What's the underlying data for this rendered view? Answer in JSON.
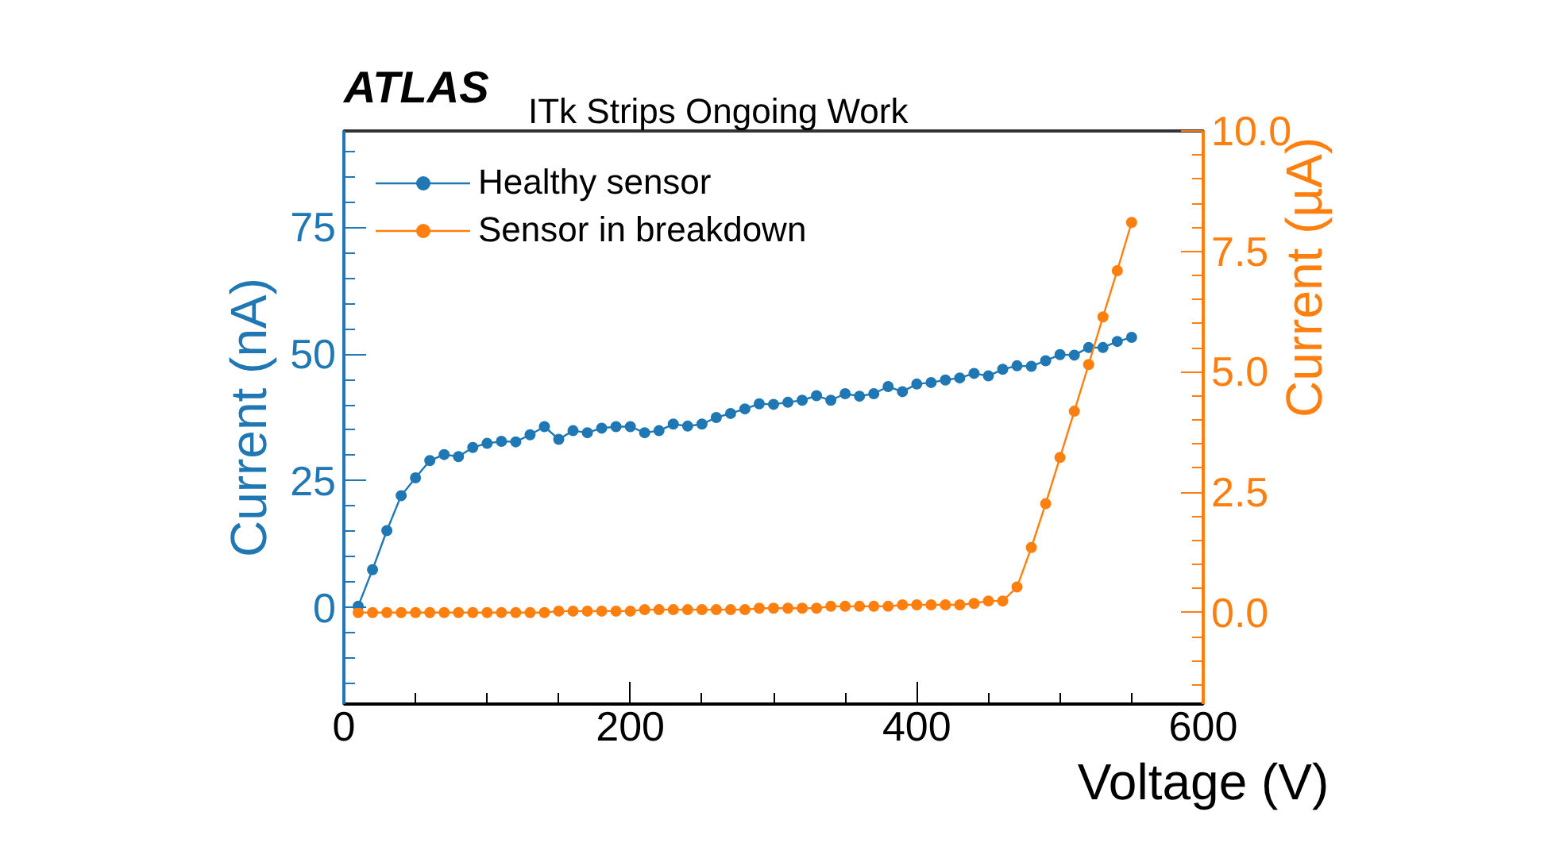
{
  "chart_data": {
    "type": "line",
    "title": "ATLAS",
    "subtitle": "ITk Strips Ongoing Work",
    "xlabel": "Voltage (V)",
    "ylabel": "Current (nA)",
    "y2label": "Current (µA)",
    "x": [
      10,
      20,
      30,
      40,
      50,
      60,
      70,
      80,
      90,
      100,
      110,
      120,
      130,
      140,
      150,
      160,
      170,
      180,
      190,
      200,
      210,
      220,
      230,
      240,
      250,
      260,
      270,
      280,
      290,
      300,
      310,
      320,
      330,
      340,
      350,
      360,
      370,
      380,
      390,
      400,
      410,
      420,
      430,
      440,
      450,
      460,
      470,
      480,
      490,
      500,
      510,
      520,
      530,
      540,
      550
    ],
    "series": [
      {
        "name": "Healthy sensor",
        "color": "#1f77b4",
        "values": [
          0.3,
          7.5,
          15.2,
          22.1,
          25.6,
          29,
          30.2,
          29.8,
          31.6,
          32.4,
          32.8,
          32.7,
          34.1,
          35.7,
          33.2,
          34.9,
          34.5,
          35.4,
          35.7,
          35.7,
          34.5,
          34.9,
          36.2,
          35.8,
          36.2,
          37.5,
          38.3,
          39.2,
          40.2,
          40.1,
          40.5,
          40.9,
          41.8,
          40.9,
          42.2,
          41.7,
          42.2,
          43.6,
          42.6,
          44.1,
          44.4,
          44.9,
          45.3,
          46.2,
          45.7,
          47,
          47.7,
          47.6,
          48.7,
          49.9,
          49.8,
          51.3,
          51.3,
          52.5,
          53.3
        ]
      },
      {
        "name": "Sensor in breakdown",
        "color": "#ff7f0e",
        "axis": "y2",
        "values": [
          0,
          0,
          0,
          0,
          0,
          0,
          0,
          0,
          0,
          0,
          0,
          0,
          0,
          0,
          0.03,
          0.03,
          0.03,
          0.03,
          0.03,
          0.03,
          0.06,
          0.06,
          0.06,
          0.06,
          0.06,
          0.06,
          0.06,
          0.06,
          0.09,
          0.09,
          0.09,
          0.09,
          0.09,
          0.13,
          0.13,
          0.13,
          0.13,
          0.13,
          0.16,
          0.16,
          0.16,
          0.16,
          0.16,
          0.19,
          0.24,
          0.24,
          0.53,
          1.35,
          2.26,
          3.22,
          4.18,
          5.15,
          6.14,
          7.1,
          8.1
        ]
      }
    ],
    "xlim": [
      0,
      600
    ],
    "xticks": [
      0,
      200,
      400,
      600
    ],
    "ylim": [
      -19,
      94
    ],
    "yticks": [
      0,
      25,
      50,
      75
    ],
    "y2lim": [
      -1.9,
      10
    ],
    "y2ticks": [
      {
        "value": 0,
        "label": "0.0"
      },
      2.5,
      {
        "value": 5,
        "label": "5.0"
      },
      7.5,
      {
        "value": 10,
        "label": "10.0"
      }
    ],
    "marker": "circle",
    "line_style": "solid",
    "legend": "top left",
    "grid": false
  }
}
